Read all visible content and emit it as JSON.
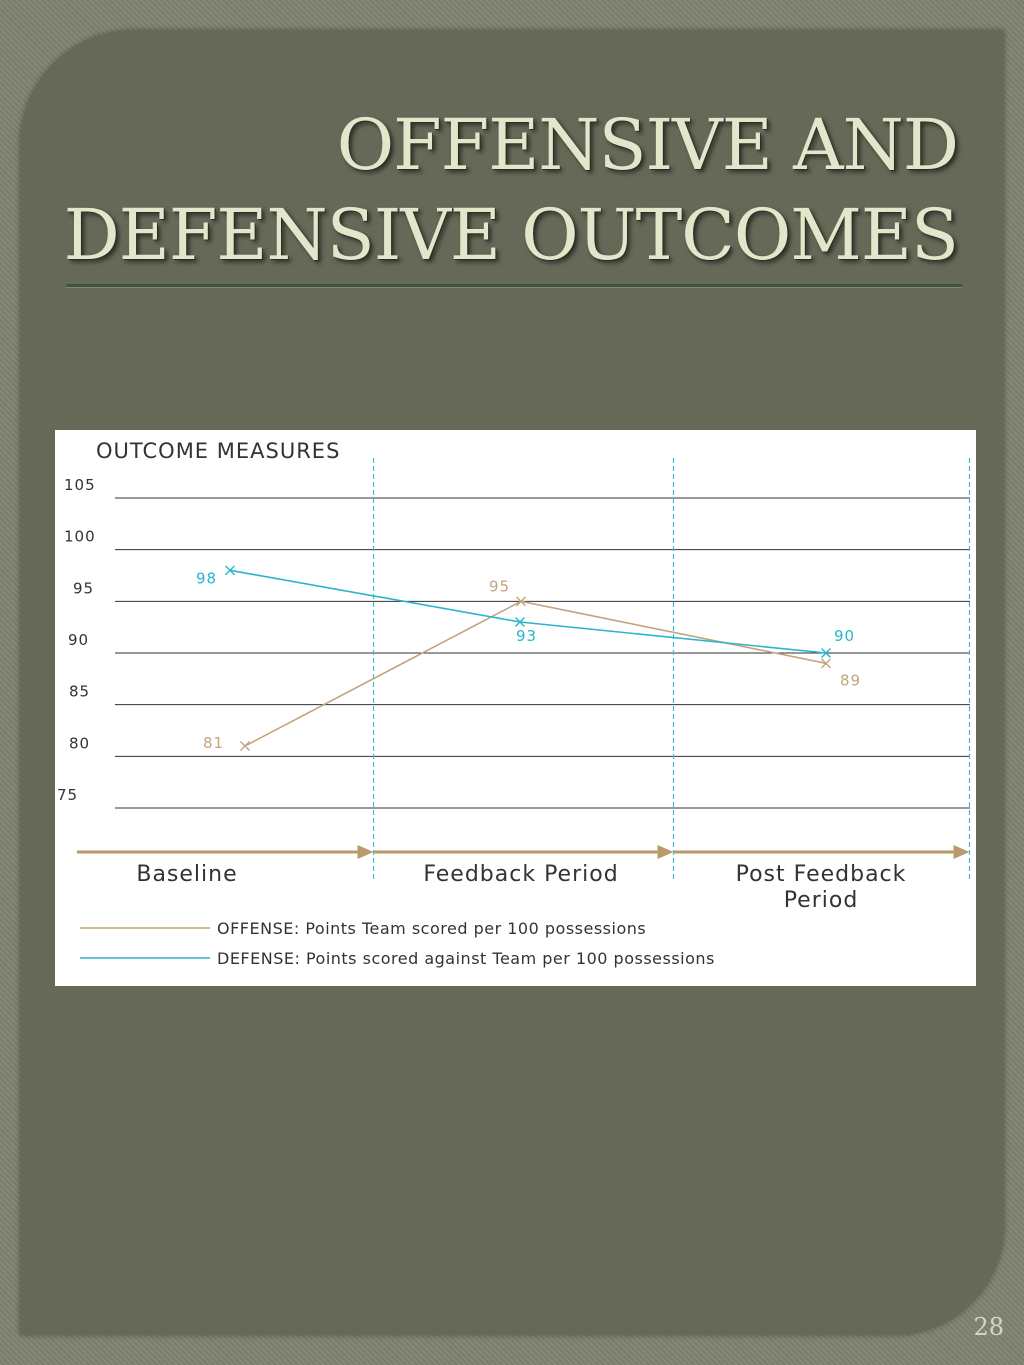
{
  "slide": {
    "title_line1": "OFFENSIVE AND",
    "title_line2": "DEFENSIVE OUTCOMES",
    "page_number": "28"
  },
  "chart_data": {
    "type": "line",
    "title": "OUTCOME MEASURES",
    "categories": [
      "Baseline",
      "Feedback Period",
      "Post Feedback Period"
    ],
    "y_ticks": [
      "105",
      "100",
      "95",
      "90",
      "85",
      "80",
      "75"
    ],
    "ylim": [
      75,
      105
    ],
    "grid": true,
    "legend_position": "bottom",
    "series": [
      {
        "name": "OFFENSE: Points Team scored per 100 possessions",
        "values": [
          81,
          95,
          89
        ],
        "labels": [
          "81",
          "95",
          "89"
        ],
        "color": "#c4a47e"
      },
      {
        "name": "DEFENSE: Points scored against Team per 100 possessions",
        "values": [
          98,
          93,
          90
        ],
        "labels": [
          "98",
          "93",
          "90"
        ],
        "color": "#2ab5cc"
      }
    ],
    "colors": {
      "grid": "#333333",
      "period_arrow": "#b89a6c",
      "divider": "#42b8da",
      "text": "#333333"
    }
  }
}
